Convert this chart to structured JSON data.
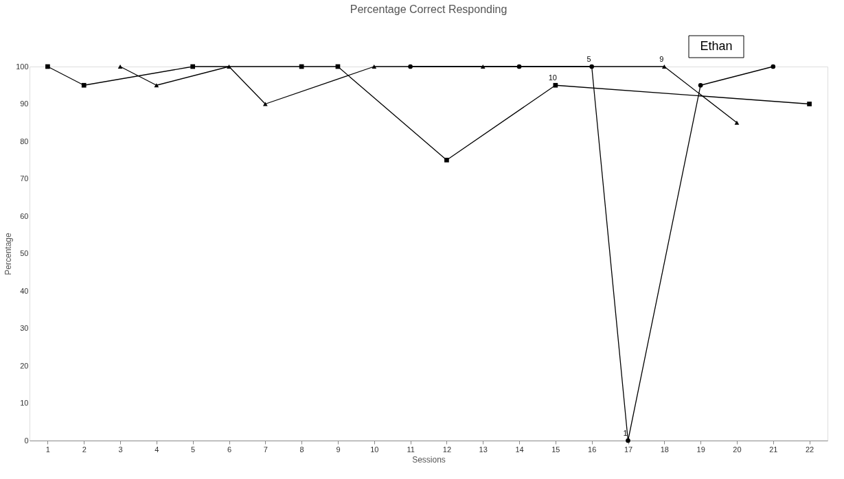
{
  "chart_data": {
    "type": "line",
    "title": "Percentage Correct Responding",
    "xlabel": "Sessions",
    "ylabel": "Percentage",
    "xlim": [
      0.5,
      22.5
    ],
    "xticks": [
      1,
      2,
      3,
      4,
      5,
      6,
      7,
      8,
      9,
      10,
      11,
      12,
      13,
      14,
      15,
      16,
      17,
      18,
      19,
      20,
      21,
      22
    ],
    "ylim": [
      0,
      100
    ],
    "yticks": [
      0,
      10,
      20,
      30,
      40,
      50,
      60,
      70,
      80,
      90,
      100
    ],
    "grid": false,
    "line_style": "solid",
    "series": [
      {
        "color": "#000000",
        "marker": "square",
        "x": [
          1,
          2,
          5,
          8,
          9,
          12,
          15,
          22
        ],
        "values": [
          100,
          95,
          100,
          100,
          100,
          75,
          95,
          90
        ]
      },
      {
        "color": "#000000",
        "marker": "triangle",
        "x": [
          3,
          4,
          6,
          7,
          10,
          13,
          18,
          20
        ],
        "values": [
          100,
          95,
          100,
          90,
          100,
          100,
          100,
          85
        ]
      },
      {
        "color": "#000000",
        "marker": "circle",
        "x": [
          11,
          14,
          16,
          17,
          19,
          21
        ],
        "values": [
          100,
          100,
          100,
          0,
          95,
          100
        ]
      }
    ],
    "annotations": [
      {
        "text": "5",
        "x": 16,
        "y": 100
      },
      {
        "text": "10",
        "x": 15,
        "y": 95
      },
      {
        "text": "9",
        "x": 18,
        "y": 100
      },
      {
        "text": "1",
        "x": 17,
        "y": 0
      },
      "Ethan"
    ]
  }
}
